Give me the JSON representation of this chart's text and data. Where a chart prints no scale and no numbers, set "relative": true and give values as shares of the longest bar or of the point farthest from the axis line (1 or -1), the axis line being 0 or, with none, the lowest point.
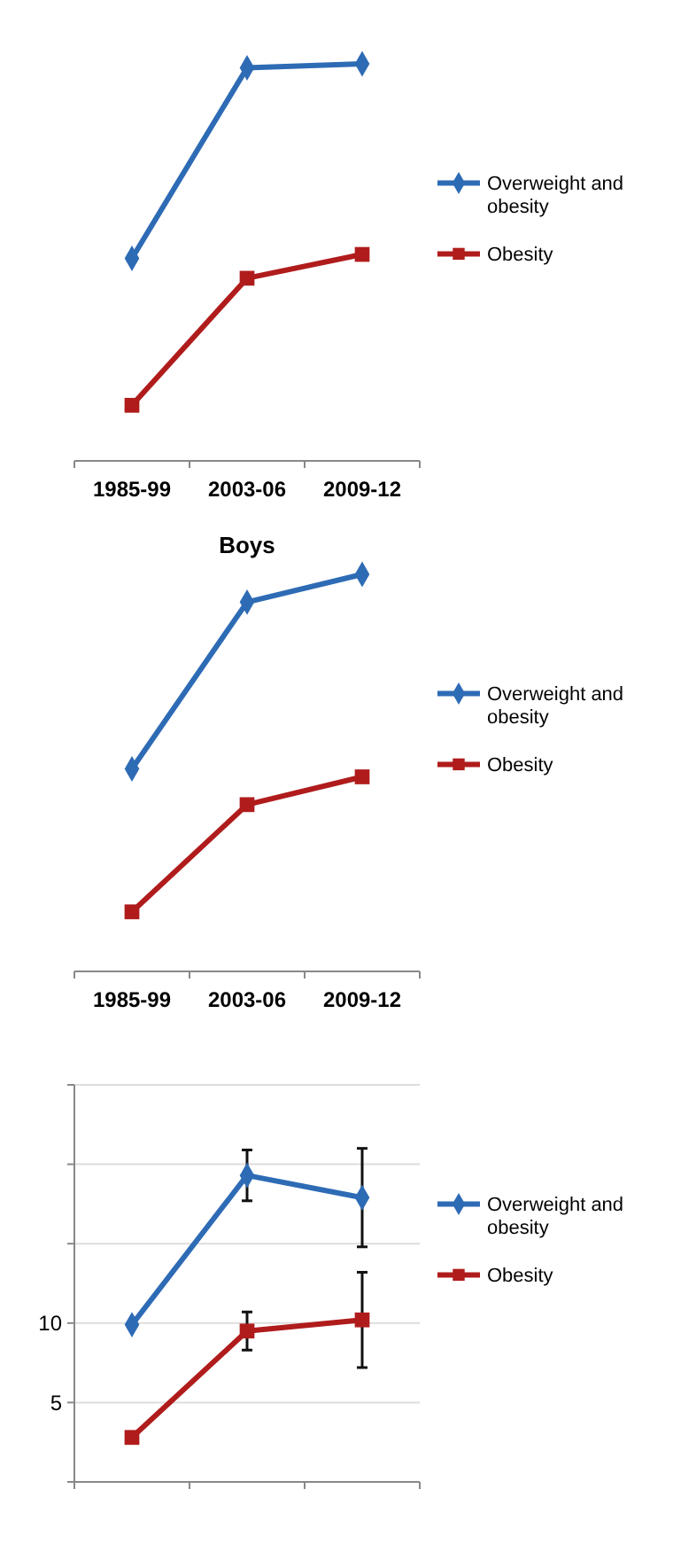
{
  "chart_data": [
    {
      "type": "line",
      "relative": true,
      "categories": [
        "1985-99",
        "2003-06",
        "2009-12"
      ],
      "legend": "right",
      "series": [
        {
          "name": "Overweight and obesity",
          "color": "#2e6bb5",
          "marker": "diamond",
          "values": [
            0.51,
            0.99,
            1.0
          ]
        },
        {
          "name": "Obesity",
          "color": "#b01c1c",
          "marker": "square",
          "values": [
            0.14,
            0.46,
            0.52
          ]
        }
      ]
    },
    {
      "type": "line",
      "title": "Boys",
      "relative": true,
      "categories": [
        "1985-99",
        "2003-06",
        "2009-12"
      ],
      "legend": "right",
      "series": [
        {
          "name": "Overweight and obesity",
          "color": "#2e6bb5",
          "marker": "diamond",
          "values": [
            0.51,
            0.93,
            1.0
          ]
        },
        {
          "name": "Obesity",
          "color": "#b01c1c",
          "marker": "square",
          "values": [
            0.15,
            0.42,
            0.49
          ]
        }
      ]
    },
    {
      "type": "line",
      "categories": [
        null,
        null,
        null
      ],
      "legend": "right",
      "grid": "y",
      "ylim": [
        0,
        25
      ],
      "yticks": [
        {
          "value": 0,
          "label": null
        },
        5,
        10,
        {
          "value": 15,
          "label": null
        },
        {
          "value": 20,
          "label": null
        },
        {
          "value": 25,
          "label": null
        }
      ],
      "series": [
        {
          "name": "Overweight and obesity",
          "color": "#2e6bb5",
          "marker": "diamond",
          "values": [
            9.9,
            19.3,
            17.9
          ],
          "errors": [
            null,
            [
              17.7,
              20.9
            ],
            [
              14.8,
              21.0
            ]
          ]
        },
        {
          "name": "Obesity",
          "color": "#b01c1c",
          "marker": "square",
          "values": [
            2.8,
            9.5,
            10.2
          ],
          "errors": [
            null,
            [
              8.3,
              10.7
            ],
            [
              7.2,
              13.2
            ]
          ]
        }
      ]
    }
  ]
}
